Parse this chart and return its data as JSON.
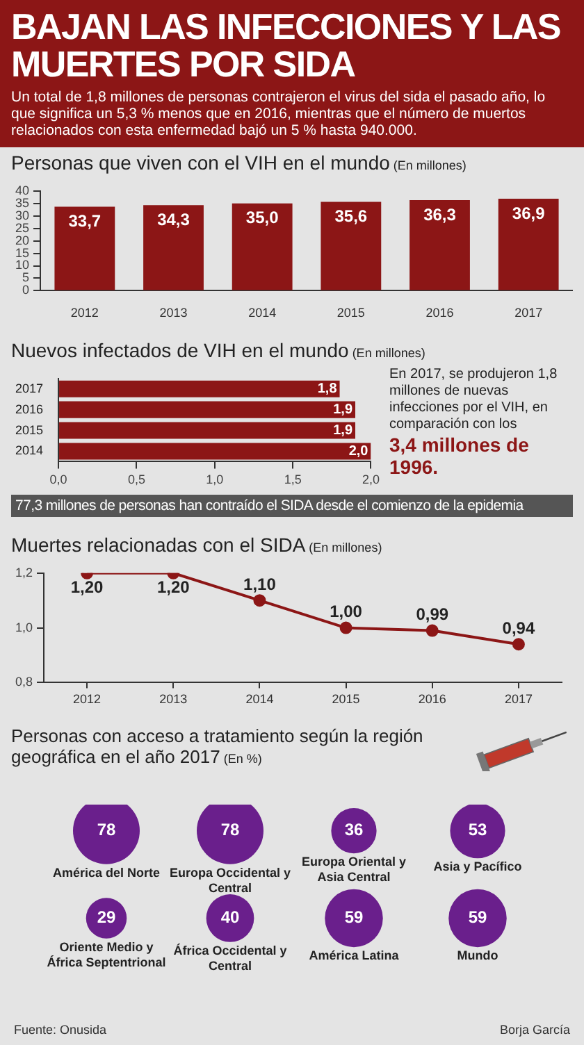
{
  "chart_data": [
    {
      "type": "other",
      "title": "BAJAN LAS INFECCIONES Y LAS MUERTES POR SIDA",
      "subtitle": "Un total de 1,8 millones de personas contrajeron el virus del sida el pasado año, lo que significa un 5,3 % menos que en 2016, mientras que el número de muertos relacionados con esta enfermedad bajó un 5 % hasta 940.000."
    },
    {
      "type": "bar",
      "title": "Personas que viven con el VIH en el mundo",
      "subtitle": "(En millones)",
      "categories": [
        "2012",
        "2013",
        "2014",
        "2015",
        "2016",
        "2017"
      ],
      "values": [
        33.7,
        34.3,
        35.0,
        35.6,
        36.3,
        36.9
      ],
      "value_labels": [
        "33,7",
        "34,3",
        "35,0",
        "35,6",
        "36,3",
        "36,9"
      ],
      "color": "#8c1616",
      "ylim": [
        0,
        40
      ],
      "yticks": [
        0,
        5,
        10,
        15,
        20,
        25,
        30,
        35,
        40
      ]
    },
    {
      "type": "bar",
      "orientation": "horizontal",
      "title": "Nuevos infectados de VIH en el mundo",
      "subtitle": "(En millones)",
      "categories": [
        "2017",
        "2016",
        "2015",
        "2014"
      ],
      "values": [
        1.8,
        1.9,
        1.9,
        2.0
      ],
      "value_labels": [
        "1,8",
        "1,9",
        "1,9",
        "2,0"
      ],
      "color": "#8c1616",
      "xlim": [
        0,
        2
      ],
      "xticks": [
        {
          "value": 0,
          "label": "0,0"
        },
        {
          "value": 0.5,
          "label": "0,5"
        },
        {
          "value": 1,
          "label": "1,0"
        },
        {
          "value": 1.5,
          "label": "1,5"
        },
        {
          "value": 2,
          "label": "2,0"
        }
      ],
      "annotations": [
        "En 2017, se produjeron 1,8 millones de nuevas infecciones por el VIH, en comparación con los",
        "3,4 millones de 1996.",
        "77,3 millones de personas han contraído el SIDA desde el comienzo de la epidemia"
      ]
    },
    {
      "type": "line",
      "title": "Muertes relacionadas con el SIDA",
      "subtitle": "(En millones)",
      "categories": [
        "2012",
        "2013",
        "2014",
        "2015",
        "2016",
        "2017"
      ],
      "values": [
        1.2,
        1.2,
        1.1,
        1.0,
        0.99,
        0.94
      ],
      "value_labels": [
        "1,20",
        "1,20",
        "1,10",
        "1,00",
        "0,99",
        "0,94"
      ],
      "color": "#8c1616",
      "marker": "circle",
      "ylim": [
        0.8,
        1.2
      ],
      "yticks": [
        {
          "value": 0.8,
          "label": "0,8"
        },
        {
          "value": 1.0,
          "label": "1,0"
        },
        {
          "value": 1.2,
          "label": "1,2"
        }
      ]
    },
    {
      "type": "other",
      "title": "Personas con acceso a tratamiento según la región geográfica en el año 2017",
      "subtitle": "(En %)",
      "categories": [
        "América del Norte",
        "Europa Occidental y Central",
        "Europa Oriental y Asia Central",
        "Asia y Pacífico",
        "Oriente Medio y África Septentrional",
        "África Occidental y Central",
        "América Latina",
        "Mundo"
      ],
      "values": [
        78,
        78,
        36,
        53,
        29,
        40,
        59,
        59
      ],
      "data_labels": true,
      "color": "#6a1f8c",
      "annotations": [
        "Fuente: Onusida",
        "Borja García"
      ]
    }
  ]
}
